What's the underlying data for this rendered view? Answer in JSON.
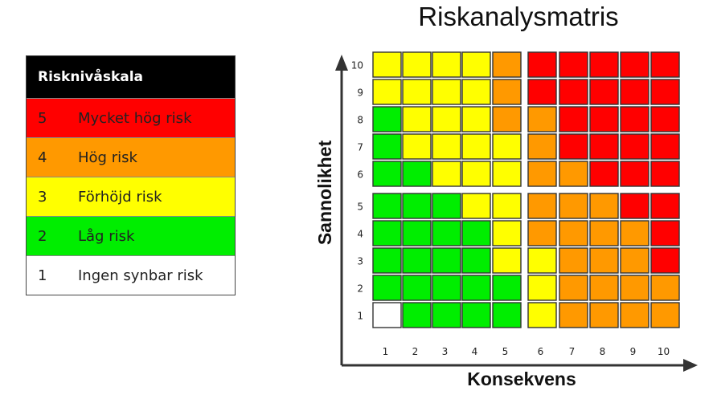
{
  "legend": {
    "title": "Risknivåskala",
    "rows": [
      {
        "level": "5",
        "label": "Mycket hög risk",
        "color": "#ff0000"
      },
      {
        "level": "4",
        "label": "Hög risk",
        "color": "#ff9900"
      },
      {
        "level": "3",
        "label": "Förhöjd risk",
        "color": "#ffff00"
      },
      {
        "level": "2",
        "label": "Låg risk",
        "color": "#00ee00"
      },
      {
        "level": "1",
        "label": "Ingen synbar risk",
        "color": "#ffffff"
      }
    ]
  },
  "matrix": {
    "title": "Riskanalysmatris",
    "xlabel": "Konsekvens",
    "ylabel": "Sannolikhet",
    "x_ticks": [
      "1",
      "2",
      "3",
      "4",
      "5",
      "6",
      "7",
      "8",
      "9",
      "10"
    ],
    "y_ticks": [
      "10",
      "9",
      "8",
      "7",
      "6",
      "5",
      "4",
      "3",
      "2",
      "1"
    ],
    "levels_top_to_bottom": [
      [
        3,
        3,
        3,
        3,
        4,
        5,
        5,
        5,
        5,
        5
      ],
      [
        3,
        3,
        3,
        3,
        4,
        5,
        5,
        5,
        5,
        5
      ],
      [
        2,
        3,
        3,
        3,
        4,
        4,
        5,
        5,
        5,
        5
      ],
      [
        2,
        3,
        3,
        3,
        3,
        4,
        5,
        5,
        5,
        5
      ],
      [
        2,
        2,
        3,
        3,
        3,
        4,
        4,
        5,
        5,
        5
      ],
      [
        2,
        2,
        2,
        3,
        3,
        4,
        4,
        4,
        5,
        5
      ],
      [
        2,
        2,
        2,
        2,
        3,
        4,
        4,
        4,
        4,
        5
      ],
      [
        2,
        2,
        2,
        2,
        3,
        3,
        4,
        4,
        4,
        5
      ],
      [
        2,
        2,
        2,
        2,
        2,
        3,
        4,
        4,
        4,
        4
      ],
      [
        1,
        2,
        2,
        2,
        2,
        3,
        4,
        4,
        4,
        4
      ]
    ]
  }
}
